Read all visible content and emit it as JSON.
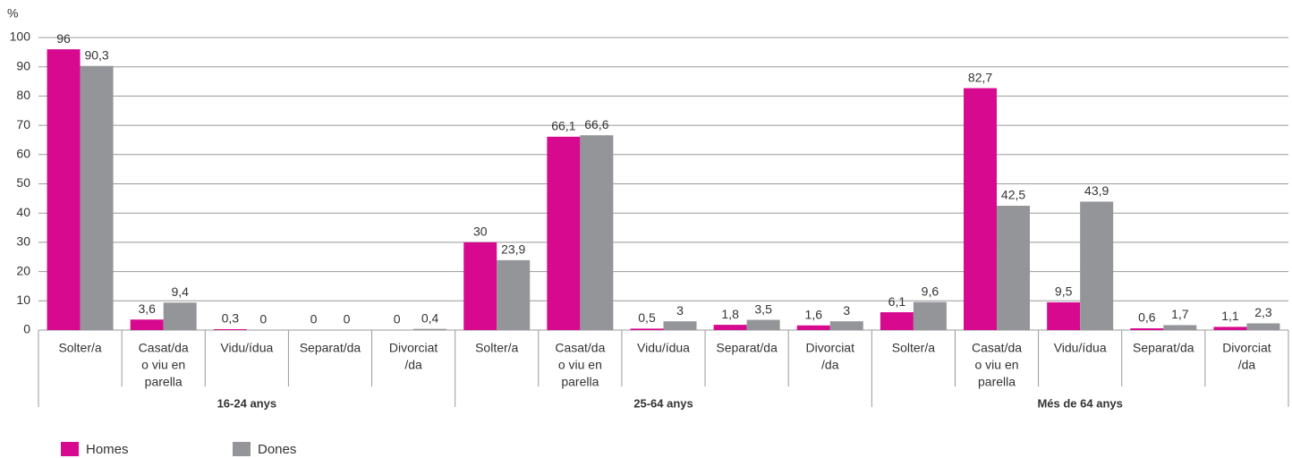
{
  "chart_data": {
    "type": "bar",
    "ylabel": "%",
    "ylim": [
      0,
      100
    ],
    "yticks": [
      0,
      10,
      20,
      30,
      40,
      50,
      60,
      70,
      80,
      90,
      100
    ],
    "grid": true,
    "groups": [
      "16-24 anys",
      "25-64 anys",
      "Més de 64 anys"
    ],
    "categories": [
      [
        "Solter/a"
      ],
      [
        "Casat/da",
        "o viu en",
        "parella"
      ],
      [
        "Vidu/ídua"
      ],
      [
        "Separat/da"
      ],
      [
        "Divorciat",
        "/da"
      ],
      [
        "Solter/a"
      ],
      [
        "Casat/da",
        "o viu en",
        "parella"
      ],
      [
        "Vidu/ídua"
      ],
      [
        "Separat/da"
      ],
      [
        "Divorciat",
        "/da"
      ],
      [
        "Solter/a"
      ],
      [
        "Casat/da",
        "o viu en",
        "parella"
      ],
      [
        "Vidu/ídua"
      ],
      [
        "Separat/da"
      ],
      [
        "Divorciat",
        "/da"
      ]
    ],
    "series": [
      {
        "name": "Homes",
        "color": "#d6098f",
        "values": [
          96,
          3.6,
          0.3,
          0,
          0,
          30,
          66.1,
          0.5,
          1.8,
          1.6,
          6.1,
          82.7,
          9.5,
          0.6,
          1.1
        ],
        "value_labels": [
          "96",
          "3,6",
          "0,3",
          "0",
          "0",
          "30",
          "66,1",
          "0,5",
          "1,8",
          "1,6",
          "6,1",
          "82,7",
          "9,5",
          "0,6",
          "1,1"
        ]
      },
      {
        "name": "Dones",
        "color": "#939598",
        "values": [
          90.3,
          9.4,
          0,
          0,
          0.4,
          23.9,
          66.6,
          3,
          3.5,
          3,
          9.6,
          42.5,
          43.9,
          1.7,
          2.3
        ],
        "value_labels": [
          "90,3",
          "9,4",
          "0",
          "0",
          "0,4",
          "23,9",
          "66,6",
          "3",
          "3,5",
          "3",
          "9,6",
          "42,5",
          "43,9",
          "1,7",
          "2,3"
        ]
      }
    ]
  }
}
